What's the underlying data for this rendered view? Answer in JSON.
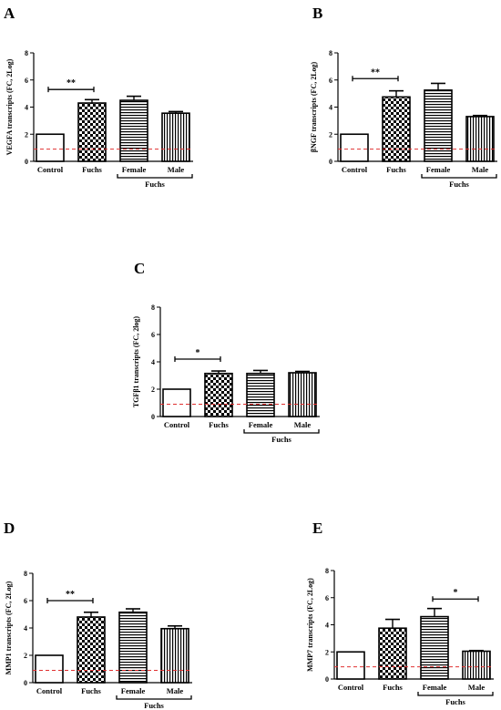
{
  "chart_data": [
    {
      "type": "bar",
      "panel": "A",
      "categories": [
        "Control",
        "Fuchs",
        "Female",
        "Male"
      ],
      "group_label": "Fuchs",
      "group_spans": [
        "Female",
        "Male"
      ],
      "values": [
        2.0,
        4.3,
        4.5,
        3.55
      ],
      "errors": [
        0.0,
        0.25,
        0.3,
        0.12
      ],
      "fills": [
        "plain",
        "checker",
        "hlines",
        "vlines"
      ],
      "ylabel": "VEGFA transcripts (FC, 2Log)",
      "ylim": [
        0,
        8
      ],
      "yticks": [
        0,
        2,
        4,
        6,
        8
      ],
      "reference_line": 0.9,
      "reference_color": "#e03030",
      "significance": {
        "from": "Control",
        "to": "Fuchs",
        "label": "**",
        "y": 5.3
      }
    },
    {
      "type": "bar",
      "panel": "B",
      "categories": [
        "Control",
        "Fuchs",
        "Female",
        "Male"
      ],
      "group_label": "Fuchs",
      "group_spans": [
        "Female",
        "Male"
      ],
      "values": [
        2.0,
        4.75,
        5.25,
        3.3
      ],
      "errors": [
        0.0,
        0.45,
        0.5,
        0.08
      ],
      "fills": [
        "plain",
        "checker",
        "hlines",
        "vlines"
      ],
      "ylabel": "βNGF transcripts (FC, 2Log)",
      "ylim": [
        0,
        8
      ],
      "yticks": [
        0,
        2,
        4,
        6,
        8
      ],
      "reference_line": 0.9,
      "reference_color": "#e03030",
      "significance": {
        "from": "Control",
        "to": "Fuchs",
        "label": "**",
        "y": 6.1
      }
    },
    {
      "type": "bar",
      "panel": "C",
      "categories": [
        "Control",
        "Fuchs",
        "Female",
        "Male"
      ],
      "group_label": "Fuchs",
      "group_spans": [
        "Female",
        "Male"
      ],
      "values": [
        2.0,
        3.15,
        3.15,
        3.2
      ],
      "errors": [
        0.0,
        0.18,
        0.22,
        0.1
      ],
      "fills": [
        "plain",
        "checker",
        "hlines",
        "vlines"
      ],
      "ylabel": "TGFβ1 transcripts (FC, 2log)",
      "ylim": [
        0,
        8
      ],
      "yticks": [
        0,
        2,
        4,
        6,
        8
      ],
      "reference_line": 0.9,
      "reference_color": "#e03030",
      "significance": {
        "from": "Control",
        "to": "Fuchs",
        "label": "*",
        "y": 4.2
      }
    },
    {
      "type": "bar",
      "panel": "D",
      "categories": [
        "Control",
        "Fuchs",
        "Female",
        "Male"
      ],
      "group_label": "Fuchs",
      "group_spans": [
        "Female",
        "Male"
      ],
      "values": [
        2.0,
        4.8,
        5.15,
        3.95
      ],
      "errors": [
        0.0,
        0.35,
        0.25,
        0.2
      ],
      "fills": [
        "plain",
        "checker",
        "hlines",
        "vlines"
      ],
      "ylabel": "MMP1 transcripts (FC, 2Log)",
      "ylim": [
        0,
        8
      ],
      "yticks": [
        0,
        2,
        4,
        6,
        8
      ],
      "reference_line": 0.9,
      "reference_color": "#e03030",
      "significance": {
        "from": "Control",
        "to": "Fuchs",
        "label": "**",
        "y": 6.0
      }
    },
    {
      "type": "bar",
      "panel": "E",
      "categories": [
        "Control",
        "Fuchs",
        "Female",
        "Male"
      ],
      "group_label": "Fuchs",
      "group_spans": [
        "Female",
        "Male"
      ],
      "values": [
        2.0,
        3.75,
        4.6,
        2.05
      ],
      "errors": [
        0.0,
        0.65,
        0.6,
        0.05
      ],
      "fills": [
        "plain",
        "checker",
        "hlines",
        "vlines"
      ],
      "ylabel": "MMP7 transcripts (FC, 2Log)",
      "ylim": [
        0,
        8
      ],
      "yticks": [
        0,
        2,
        4,
        6,
        8
      ],
      "reference_line": 0.9,
      "reference_color": "#e03030",
      "significance": {
        "from": "Female",
        "to": "Male",
        "label": "*",
        "y": 5.9
      }
    }
  ]
}
